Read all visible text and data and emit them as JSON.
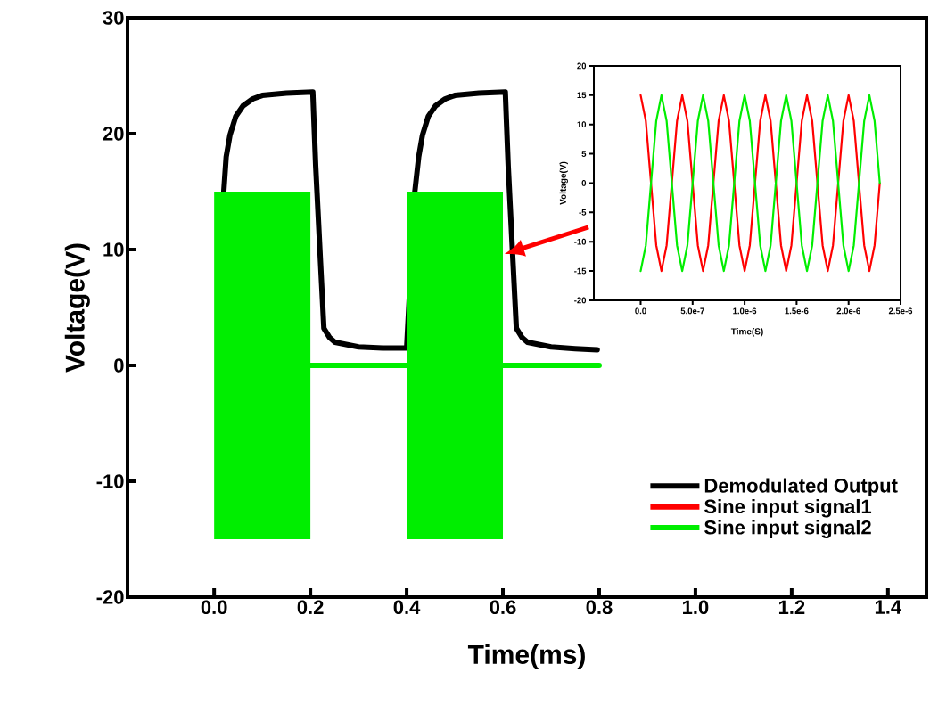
{
  "chart_data": [
    {
      "type": "line",
      "xlabel": "Time(ms)",
      "ylabel": "Voltage(V)",
      "xlim": [
        -0.18,
        1.48
      ],
      "ylim": [
        -20,
        30
      ],
      "xticks": [
        {
          "value": 0,
          "label": "0.0"
        },
        {
          "value": 0.2,
          "label": "0.2"
        },
        {
          "value": 0.4,
          "label": "0.4"
        },
        {
          "value": 0.6,
          "label": "0.6"
        },
        {
          "value": 0.8,
          "label": "0.8"
        },
        {
          "value": 1.0,
          "label": "1.0"
        },
        {
          "value": 1.2,
          "label": "1.2"
        },
        {
          "value": 1.4,
          "label": "1.4"
        }
      ],
      "yticks": [
        -20,
        -10,
        0,
        10,
        20,
        30
      ],
      "legend": "bottom right",
      "grid": false,
      "marker": "none",
      "line_style": "solid",
      "series": [
        {
          "name": "Demodulated Output",
          "color": "#000000",
          "x": [
            0.02,
            0.025,
            0.033,
            0.045,
            0.06,
            0.08,
            0.1,
            0.15,
            0.205,
            0.211,
            0.221,
            0.228,
            0.24,
            0.251,
            0.3,
            0.35,
            0.4,
            0.417,
            0.425,
            0.433,
            0.445,
            0.46,
            0.48,
            0.5,
            0.55,
            0.605,
            0.611,
            0.621,
            0.628,
            0.64,
            0.651,
            0.7,
            0.75,
            0.796
          ],
          "values": [
            15,
            18,
            19.9,
            21.5,
            22.4,
            23,
            23.3,
            23.5,
            23.6,
            17.2,
            8.9,
            3.2,
            2.4,
            2.0,
            1.6,
            1.5,
            1.5,
            15,
            18,
            19.9,
            21.5,
            22.4,
            23,
            23.3,
            23.5,
            23.6,
            17.2,
            8.9,
            3.2,
            2.4,
            2.0,
            1.6,
            1.45,
            1.35
          ]
        },
        {
          "name": "Sine input signal1",
          "color": "#ff0000"
        },
        {
          "name": "Sine input signal2",
          "color": "#00ee00",
          "x": [
            0,
            0.2,
            0.2,
            0.4,
            0.4,
            0.6,
            0.6,
            0.8
          ],
          "values": [
            null,
            null,
            0,
            0,
            null,
            null,
            0,
            0
          ],
          "lower": [
            -15,
            -15,
            null,
            null,
            -15,
            -15,
            null,
            null
          ],
          "upper": [
            15,
            15,
            null,
            null,
            15,
            15,
            null,
            null
          ]
        }
      ]
    },
    {
      "type": "line",
      "xlabel": "Time(S)",
      "ylabel": "Voltage(V)",
      "xlim": [
        -4.5e-07,
        2.5e-06
      ],
      "ylim": [
        -20,
        20
      ],
      "xticks": [
        {
          "value": 0,
          "label": "0.0"
        },
        {
          "value": 5e-07,
          "label": "5.0e-7"
        },
        {
          "value": 1e-06,
          "label": "1.0e-6"
        },
        {
          "value": 1.5e-06,
          "label": "1.5e-6"
        },
        {
          "value": 2e-06,
          "label": "2.0e-6"
        },
        {
          "value": 2.5e-06,
          "label": "2.5e-6"
        }
      ],
      "yticks": [
        -20,
        -15,
        -10,
        -5,
        0,
        5,
        10,
        15,
        20
      ],
      "grid": false,
      "marker": "none",
      "line_style": "solid",
      "x": [
        0,
        5e-08,
        1e-07,
        1.5e-07,
        2e-07,
        2.5e-07,
        3e-07,
        3.5e-07,
        4e-07,
        4.5e-07,
        5e-07,
        5.5e-07,
        6e-07,
        6.5e-07,
        7e-07,
        7.5e-07,
        8e-07,
        8.5e-07,
        9e-07,
        9.5e-07,
        1e-06,
        1.05e-06,
        1.1e-06,
        1.15e-06,
        1.2e-06,
        1.25e-06,
        1.3e-06,
        1.35e-06,
        1.4e-06,
        1.45e-06,
        1.5e-06,
        1.55e-06,
        1.6e-06,
        1.65e-06,
        1.7e-06,
        1.75e-06,
        1.8e-06,
        1.85e-06,
        1.9e-06,
        1.95e-06,
        2e-06,
        2.05e-06,
        2.1e-06,
        2.15e-06,
        2.2e-06,
        2.25e-06,
        2.3e-06
      ],
      "series": [
        {
          "color": "#ff0000",
          "values": [
            15,
            10.6,
            0,
            -10.6,
            -15,
            -10.6,
            0,
            10.6,
            15,
            10.6,
            0,
            -10.6,
            -15,
            -10.6,
            0,
            10.6,
            15,
            10.6,
            0,
            -10.6,
            -15,
            -10.6,
            0,
            10.6,
            15,
            10.6,
            0,
            -10.6,
            -15,
            -10.6,
            0,
            10.6,
            15,
            10.6,
            0,
            -10.6,
            -15,
            -10.6,
            0,
            10.6,
            15,
            10.6,
            0,
            -10.6,
            -15,
            -10.6,
            0
          ]
        },
        {
          "color": "#00ee00",
          "values": [
            -15,
            -10.6,
            0,
            10.6,
            15,
            10.6,
            0,
            -10.6,
            -15,
            -10.6,
            0,
            10.6,
            15,
            10.6,
            0,
            -10.6,
            -15,
            -10.6,
            0,
            10.6,
            15,
            10.6,
            0,
            -10.6,
            -15,
            -10.6,
            0,
            10.6,
            15,
            10.6,
            0,
            -10.6,
            -15,
            -10.6,
            0,
            10.6,
            15,
            10.6,
            0,
            -10.6,
            -15,
            -10.6,
            0,
            10.6,
            15,
            10.6,
            0
          ]
        }
      ]
    }
  ]
}
